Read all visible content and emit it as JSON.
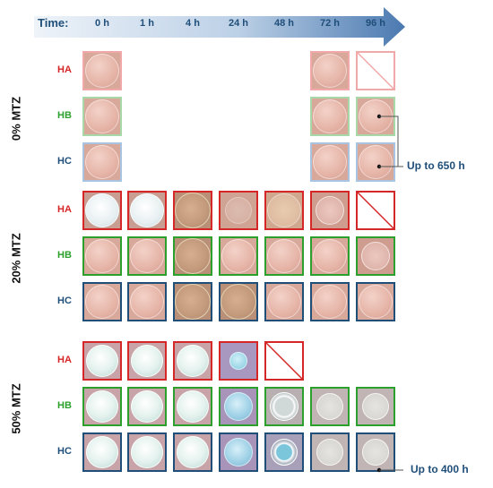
{
  "header": {
    "time_title": "Time:",
    "time_points": [
      "0 h",
      "1 h",
      "4 h",
      "24 h",
      "48 h",
      "72 h",
      "96 h"
    ]
  },
  "colors": {
    "HA": "#d62728",
    "HB": "#2ca02c",
    "HC": "#1f4e79",
    "HA_light": "#f0a8a8",
    "HB_light": "#a8d8a8",
    "HC_light": "#a8c4e0",
    "arrow": "#4a79b0"
  },
  "groups": [
    {
      "label": "0% MTZ",
      "rows": [
        {
          "name": "HA",
          "cells": [
            "pink",
            "none",
            "none",
            "none",
            "none",
            "pink",
            "dissolved"
          ]
        },
        {
          "name": "HB",
          "cells": [
            "pink",
            "none",
            "none",
            "none",
            "none",
            "pink",
            "pink"
          ]
        },
        {
          "name": "HC",
          "cells": [
            "pink",
            "none",
            "none",
            "none",
            "none",
            "pink",
            "pink"
          ]
        }
      ],
      "annotation": "Up to 650 h"
    },
    {
      "label": "20% MTZ",
      "rows": [
        {
          "name": "HA",
          "cells": [
            "white",
            "white",
            "tan",
            "faint",
            "speckle",
            "frag",
            "dissolved"
          ]
        },
        {
          "name": "HB",
          "cells": [
            "pink",
            "pink",
            "tan",
            "pink",
            "pink",
            "pink",
            "frag"
          ]
        },
        {
          "name": "HC",
          "cells": [
            "pink",
            "pink",
            "tan",
            "tan",
            "pink",
            "pink",
            "pink"
          ]
        }
      ],
      "annotation": ""
    },
    {
      "label": "50% MTZ",
      "rows": [
        {
          "name": "HA",
          "cells": [
            "mint",
            "mint",
            "mint",
            "bluefrag",
            "dissolved",
            "none",
            "none"
          ]
        },
        {
          "name": "HB",
          "cells": [
            "mint",
            "mint",
            "mint",
            "blue",
            "ring",
            "clear",
            "clear"
          ]
        },
        {
          "name": "HC",
          "cells": [
            "mint",
            "mint",
            "mint",
            "blue",
            "bluering",
            "clear",
            "clear"
          ]
        }
      ],
      "annotation": "Up to 400 h"
    }
  ]
}
